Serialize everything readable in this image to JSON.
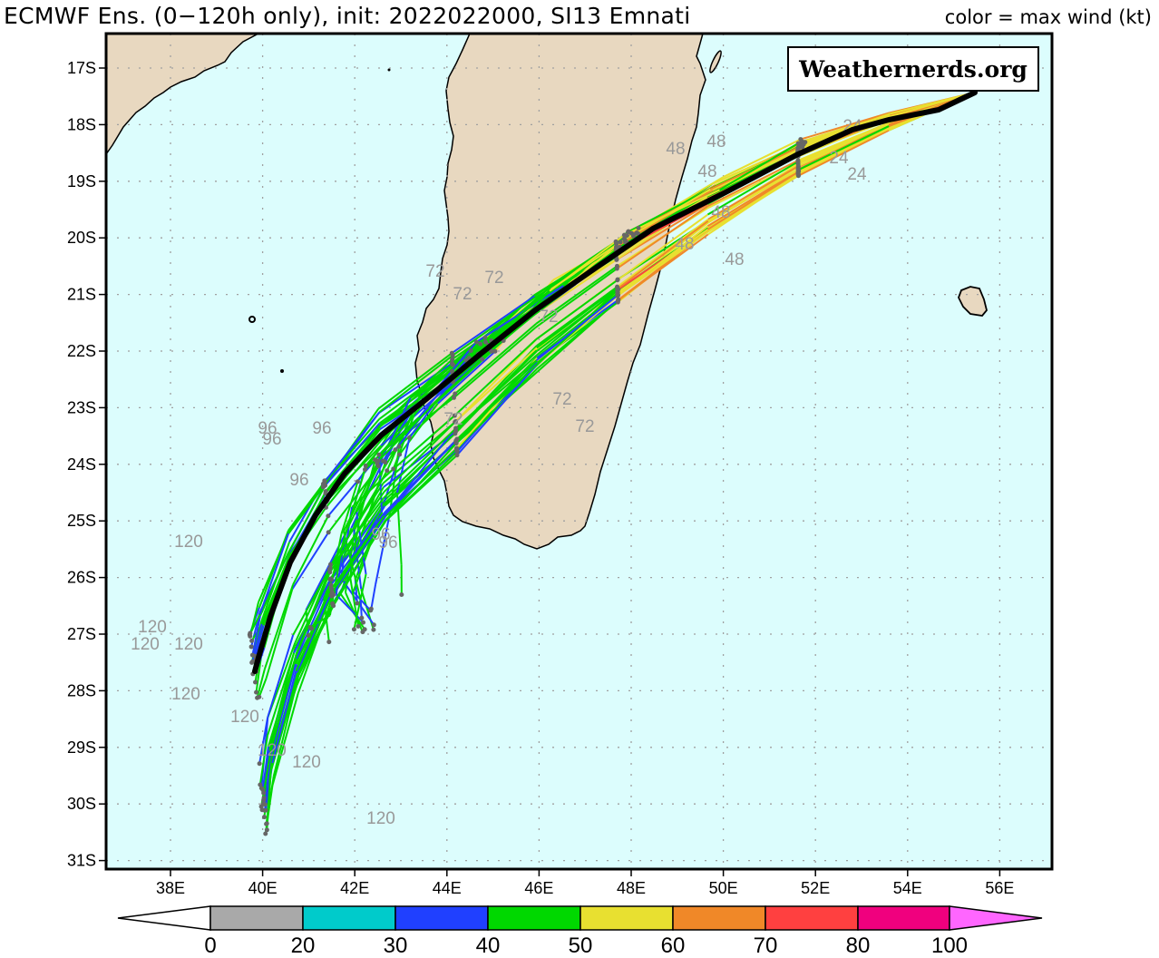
{
  "header": {
    "title": "ECMWF Ens. (0−120h only), init: 2022022000, SI13 Emnati",
    "color_note": "color = max wind (kt)"
  },
  "watermark": "Weathernerds.org",
  "map": {
    "lon_range": [
      36.6,
      57.2
    ],
    "lat_range": [
      -31.2,
      -16.4
    ],
    "lon_ticks": [
      "38E",
      "40E",
      "42E",
      "44E",
      "46E",
      "48E",
      "50E",
      "52E",
      "54E",
      "56E"
    ],
    "lat_ticks": [
      "17S",
      "18S",
      "19S",
      "20S",
      "21S",
      "22S",
      "23S",
      "24S",
      "25S",
      "26S",
      "27S",
      "28S",
      "29S",
      "30S",
      "31S"
    ],
    "colors": {
      "ocean": "#dcfdfd",
      "land": "#e8d8c0",
      "grid": "#a0a0a0",
      "mean_track": "#000000"
    },
    "lead_time_labels": [
      "24",
      "48",
      "72",
      "96",
      "120"
    ]
  },
  "colorbar": {
    "ticks": [
      "0",
      "20",
      "30",
      "40",
      "50",
      "60",
      "70",
      "80",
      "100"
    ],
    "bins": [
      {
        "range": "<0",
        "color": "#ffffff"
      },
      {
        "range": "0-20",
        "color": "#a9a9a9"
      },
      {
        "range": "20-30",
        "color": "#00cbcb"
      },
      {
        "range": "30-40",
        "color": "#2040ff"
      },
      {
        "range": "40-50",
        "color": "#00d800"
      },
      {
        "range": "50-60",
        "color": "#e8e030"
      },
      {
        "range": "60-70",
        "color": "#f08828"
      },
      {
        "range": "70-80",
        "color": "#ff4040"
      },
      {
        "range": "80-100",
        "color": "#f0007e"
      },
      {
        "range": ">100",
        "color": "#ff66ff"
      }
    ]
  },
  "chart_data": {
    "type": "map-tracks",
    "title": "ECMWF Ens. (0-120h only), init: 2022022000, SI13 Emnati",
    "legend": "color = max wind (kt)",
    "mean_track": [
      [
        55.6,
        -17.4
      ],
      [
        54.5,
        -17.7
      ],
      [
        53,
        -18
      ],
      [
        51,
        -18.8
      ],
      [
        49,
        -19.7
      ],
      [
        47,
        -20.7
      ],
      [
        45.5,
        -21.6
      ],
      [
        44,
        -22.7
      ],
      [
        42.6,
        -23.9
      ],
      [
        41.5,
        -25.1
      ],
      [
        40.7,
        -26.3
      ],
      [
        40.1,
        -27.6
      ],
      [
        39.8,
        -27.7
      ]
    ],
    "lead_time_markers": {
      "24h_lon": 53,
      "48h_lon": 49.7,
      "72h_lon": 45.6,
      "96h_lon": 41.5,
      "120h_lon": 40
    }
  }
}
